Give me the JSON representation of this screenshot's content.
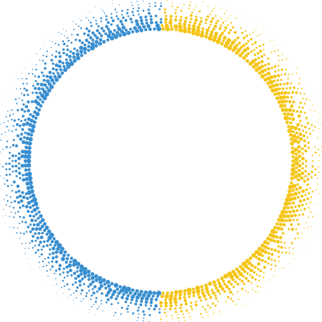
{
  "graphic": {
    "name": "halftone-dotted-ring",
    "halves": [
      {
        "name": "left-half",
        "color": "#3a8fd0"
      },
      {
        "name": "right-half",
        "color": "#f5c518"
      }
    ],
    "background": "#ffffff"
  }
}
